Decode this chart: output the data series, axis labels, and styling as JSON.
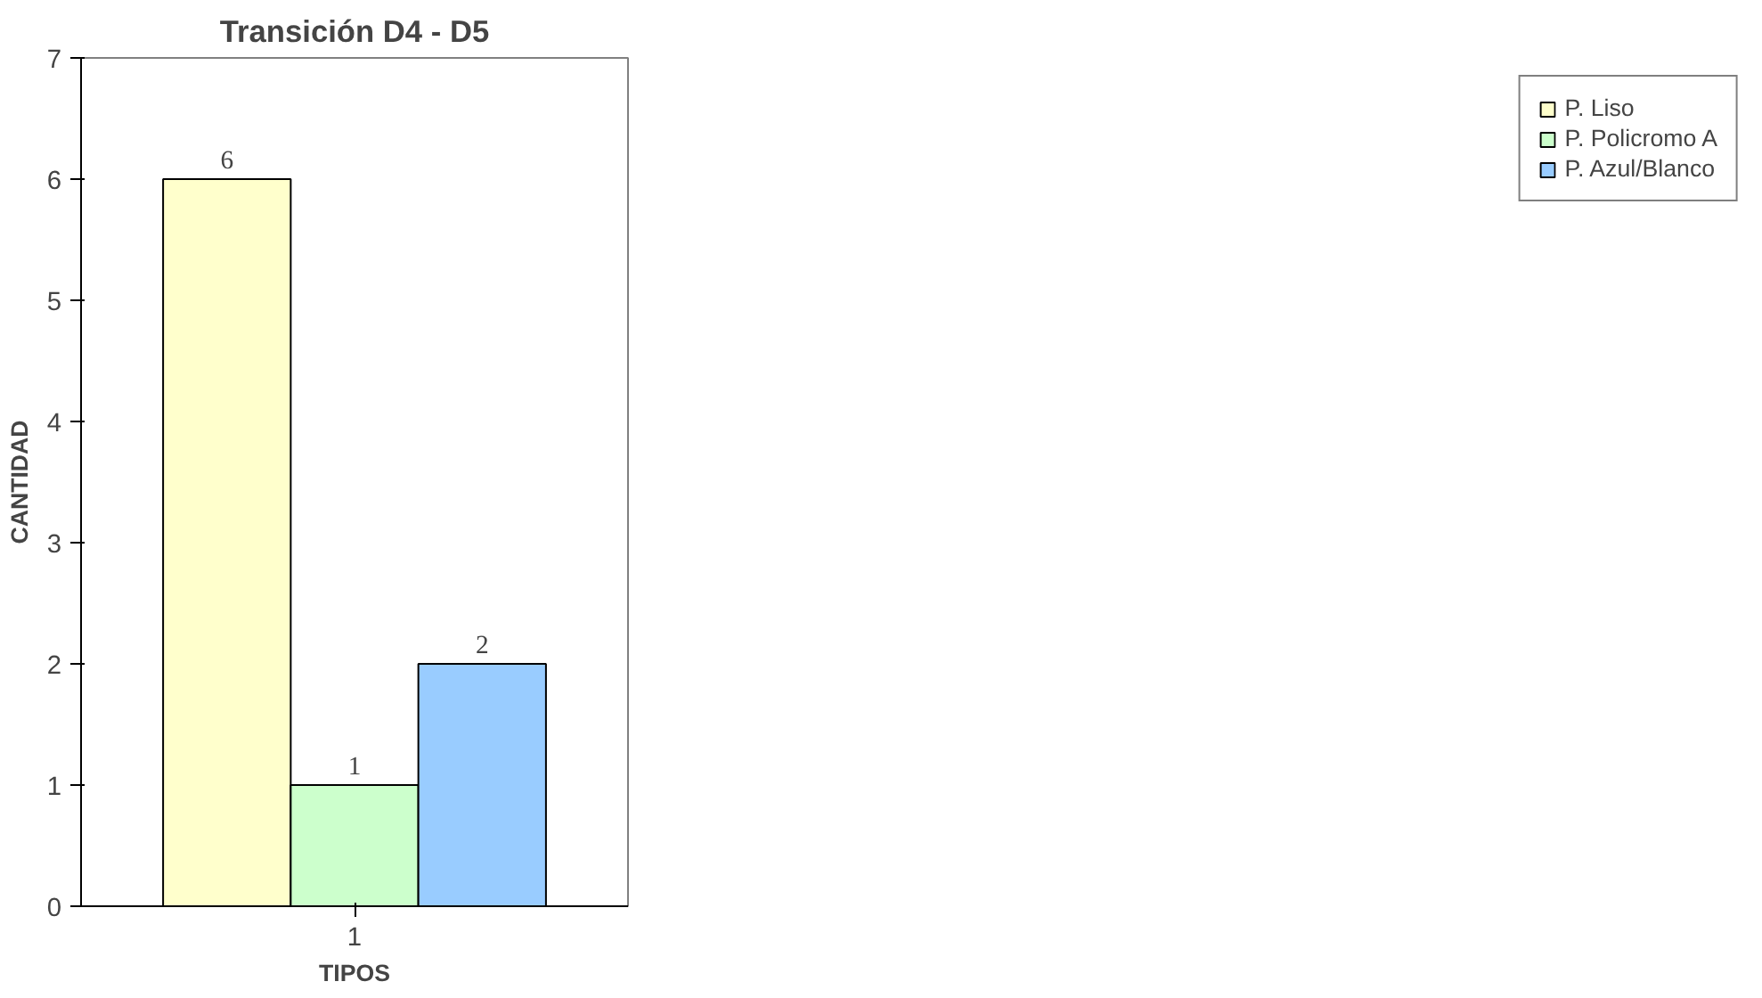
{
  "chart_data": {
    "type": "bar",
    "title": "Transición D4 - D5",
    "xlabel": "TIPOS",
    "ylabel": "CANTIDAD",
    "categories": [
      "1"
    ],
    "series": [
      {
        "name": "P. Liso",
        "color": "#ffffcc",
        "values": [
          6
        ]
      },
      {
        "name": "P. Policromo A",
        "color": "#ccffcc",
        "values": [
          1
        ]
      },
      {
        "name": "P. Azul/Blanco",
        "color": "#99ccff",
        "values": [
          2
        ]
      }
    ],
    "ylim": [
      0,
      7
    ],
    "yticks": [
      0,
      1,
      2,
      3,
      4,
      5,
      6,
      7
    ],
    "grid": false,
    "legend": "right",
    "data_labels": true
  }
}
